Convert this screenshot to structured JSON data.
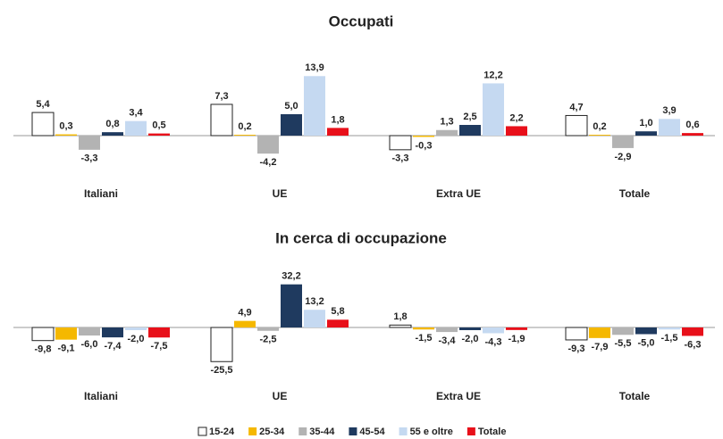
{
  "legend": [
    {
      "name": "15-24",
      "color": "#ffffff"
    },
    {
      "name": "25-34",
      "color": "#f5b800"
    },
    {
      "name": "35-44",
      "color": "#b3b3b3"
    },
    {
      "name": "45-54",
      "color": "#1f3a5f"
    },
    {
      "name": "55 e oltre",
      "color": "#c5d9f1"
    },
    {
      "name": "Totale",
      "color": "#e8101a"
    }
  ],
  "chart_data": [
    {
      "type": "bar",
      "title": "Occupati",
      "categories": [
        "Italiani",
        "UE",
        "Extra UE",
        "Totale"
      ],
      "series": [
        {
          "values": [
            5.4,
            7.3,
            -3.3,
            4.7
          ],
          "value_labels": [
            "5,4",
            "7,3",
            "-3,3",
            "4,7"
          ]
        },
        {
          "values": [
            0.3,
            0.2,
            -0.3,
            0.2
          ],
          "value_labels": [
            "0,3",
            "0,2",
            "-0,3",
            "0,2"
          ]
        },
        {
          "values": [
            -3.3,
            -4.2,
            1.3,
            -2.9
          ],
          "value_labels": [
            "-3,3",
            "-4,2",
            "1,3",
            "-2,9"
          ]
        },
        {
          "values": [
            0.8,
            5.0,
            2.5,
            1.0
          ],
          "value_labels": [
            "0,8",
            "5,0",
            "2,5",
            "1,0"
          ]
        },
        {
          "values": [
            3.4,
            13.9,
            12.2,
            3.9
          ],
          "value_labels": [
            "3,4",
            "13,9",
            "12,2",
            "3,9"
          ]
        },
        {
          "values": [
            0.5,
            1.8,
            2.2,
            0.6
          ],
          "value_labels": [
            "0,5",
            "1,8",
            "2,2",
            "0,6"
          ]
        }
      ]
    },
    {
      "type": "bar",
      "title": "In cerca di occupazione",
      "categories": [
        "Italiani",
        "UE",
        "Extra UE",
        "Totale"
      ],
      "series": [
        {
          "values": [
            -9.8,
            -25.5,
            1.8,
            -9.3
          ],
          "value_labels": [
            "-9,8",
            "-25,5",
            "1,8",
            "-9,3"
          ]
        },
        {
          "values": [
            -9.1,
            4.9,
            -1.5,
            -7.9
          ],
          "value_labels": [
            "-9,1",
            "4,9",
            "-1,5",
            "-7,9"
          ]
        },
        {
          "values": [
            -6.0,
            -2.5,
            -3.4,
            -5.5
          ],
          "value_labels": [
            "-6,0",
            "-2,5",
            "-3,4",
            "-5,5"
          ]
        },
        {
          "values": [
            -7.4,
            32.2,
            -2.0,
            -5.0
          ],
          "value_labels": [
            "-7,4",
            "32,2",
            "-2,0",
            "-5,0"
          ]
        },
        {
          "values": [
            -2.0,
            13.2,
            -4.3,
            -1.5
          ],
          "value_labels": [
            "-2,0",
            "13,2",
            "-4,3",
            "-1,5"
          ]
        },
        {
          "values": [
            -7.5,
            5.8,
            -1.9,
            -6.3
          ],
          "value_labels": [
            "-7,5",
            "5,8",
            "-1,9",
            "-6,3"
          ]
        }
      ]
    }
  ]
}
